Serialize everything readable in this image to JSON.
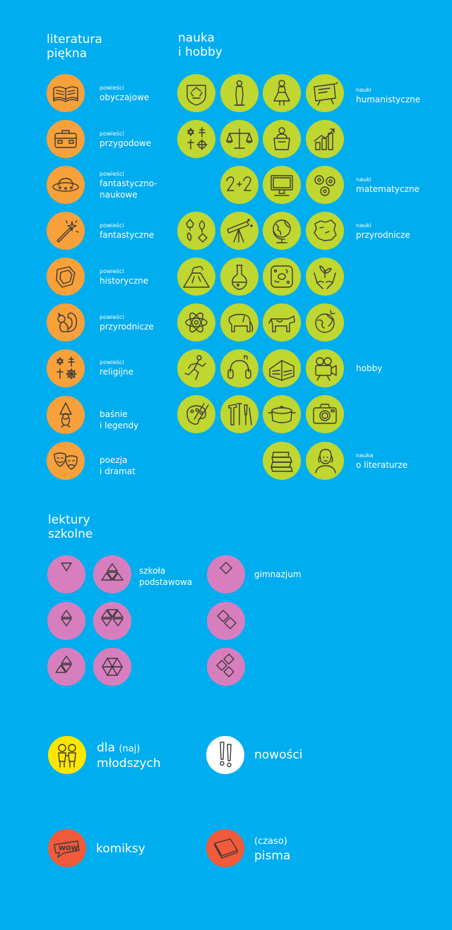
{
  "sections": {
    "literatura": {
      "line1": "literatura",
      "line2": "piękna"
    },
    "nauka": {
      "line1": "nauka",
      "line2": "i hobby"
    },
    "lektury": {
      "line1": "lektury",
      "line2": "szkolne"
    }
  },
  "literatura_items": [
    {
      "small": "powieści",
      "line1": "obyczajowe",
      "line2": "",
      "icon": "book-icon"
    },
    {
      "small": "powieści",
      "line1": "przygodowe",
      "line2": "",
      "icon": "suitcase-icon"
    },
    {
      "small": "powieści",
      "line1": "fantastyczno-",
      "line2": "naukowe",
      "icon": "ufo-icon"
    },
    {
      "small": "powieści",
      "line1": "fantastyczne",
      "line2": "",
      "icon": "magic-wand-icon"
    },
    {
      "small": "powieści",
      "line1": "historyczne",
      "line2": "",
      "icon": "shield-icon"
    },
    {
      "small": "powieści",
      "line1": "przyrodnicze",
      "line2": "",
      "icon": "squirrel-icon"
    },
    {
      "small": "powieści",
      "line1": "religijne",
      "line2": "",
      "icon": "religious-symbols-icon"
    },
    {
      "small": "",
      "line1": "baśnie",
      "line2": "i legendy",
      "icon": "gnome-icon"
    },
    {
      "small": "",
      "line1": "poezja",
      "line2": "i dramat",
      "icon": "theatre-masks-icon"
    }
  ],
  "nauka_labels": [
    {
      "small": "nauki",
      "big": "humanistyczne"
    },
    {
      "small": "nauki",
      "big": "matematyczne"
    },
    {
      "small": "nauki",
      "big": "przyrodnicze"
    },
    {
      "small": "",
      "big": "hobby"
    },
    {
      "small": "nauka",
      "big": "o literaturze"
    }
  ],
  "nauka_icons": [
    [
      "recycle-shield-icon",
      "statue-icon",
      "folk-doll-icon",
      "board-icon"
    ],
    [
      "religions-icon",
      "scales-icon",
      "speaker-podium-icon",
      "growth-chart-icon"
    ],
    [
      "",
      "math-2plus2-icon",
      "computer-monitor-icon",
      "gears-icon"
    ],
    [
      "leaves-icon",
      "telescope-icon",
      "globe-icon",
      "map-icon"
    ],
    [
      "volcano-icon",
      "flask-icon",
      "cell-icon",
      "hands-plant-icon"
    ],
    [
      "atom-icon",
      "elephant-icon",
      "cow-icon",
      "earth-icon"
    ],
    [
      "runner-icon",
      "headphones-icon",
      "building-icon",
      "film-camera-icon"
    ],
    [
      "art-palette-icon",
      "tools-icon",
      "cooking-pot-icon",
      "photo-camera-icon"
    ],
    [
      "",
      "",
      "books-stack-icon",
      "writer-portrait-icon"
    ]
  ],
  "lektury": {
    "szkola_line1": "szkoła",
    "szkola_line2": "podstawowa",
    "gimnazjum": "gimnazjum"
  },
  "bottom": {
    "mlodszych_dla": "dla",
    "mlodszych_naj": "(naj)",
    "mlodszych_line2": "młodszych",
    "nowosci": "nowości",
    "komiksy": "komiksy",
    "pisma_czaso": "(czaso)",
    "pisma_line2": "pisma",
    "komiks_bubble": "WOW"
  },
  "colors": {
    "background": "#00ADEF",
    "literatura": "#F8A13B",
    "nauka": "#BFD730",
    "lektury": "#D77FBE",
    "mlodszych": "#FFE600",
    "nowosci": "#FFFFFF",
    "komiksy": "#F15A3A",
    "pisma": "#F15A3A"
  }
}
